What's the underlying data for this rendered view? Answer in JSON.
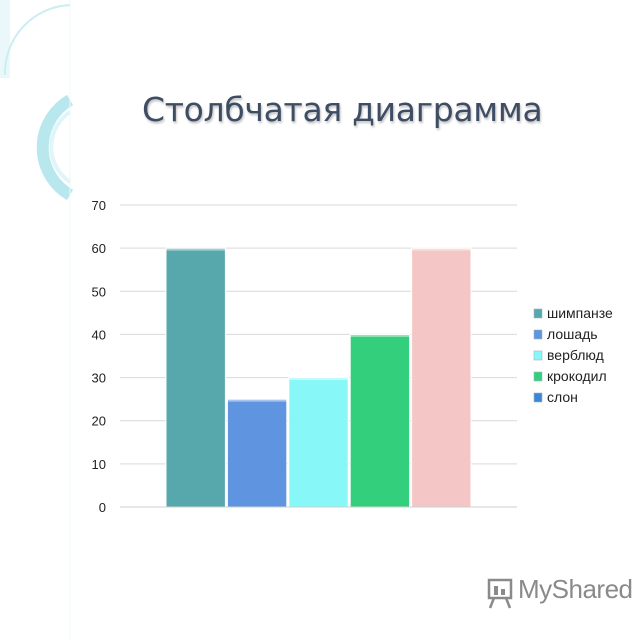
{
  "slide": {
    "title": "Столбчатая диаграмма",
    "watermark": "MyShared"
  },
  "colors": {
    "title": "#3e4d63",
    "shimpanze": "#57a8ad",
    "loshad": "#5f95e0",
    "verblyud": "#88f7f8",
    "krokodil": "#33cf7c",
    "slon": "#f5c6c6",
    "gridline": "#d9d9d9",
    "decor": "#b8e8ee"
  },
  "chart_data": {
    "type": "bar",
    "title": "",
    "xlabel": "",
    "ylabel": "",
    "ylim": [
      0,
      70
    ],
    "yticks": [
      0,
      10,
      20,
      30,
      40,
      50,
      60,
      70
    ],
    "grid": true,
    "legend_position": "right",
    "series": [
      {
        "name": "шимпанзе",
        "value": 60,
        "color": "#57a8ad"
      },
      {
        "name": "лошадь",
        "value": 25,
        "color": "#5f95e0"
      },
      {
        "name": "верблюд",
        "value": 30,
        "color": "#88f7f8"
      },
      {
        "name": "крокодил",
        "value": 40,
        "color": "#33cf7c"
      },
      {
        "name": "слон",
        "value": 60,
        "color": "#f5c6c6"
      }
    ],
    "legend_marker_colors": [
      "#57a8ad",
      "#5f95e0",
      "#88f7f8",
      "#33cf7c",
      "#3a86d8"
    ]
  }
}
